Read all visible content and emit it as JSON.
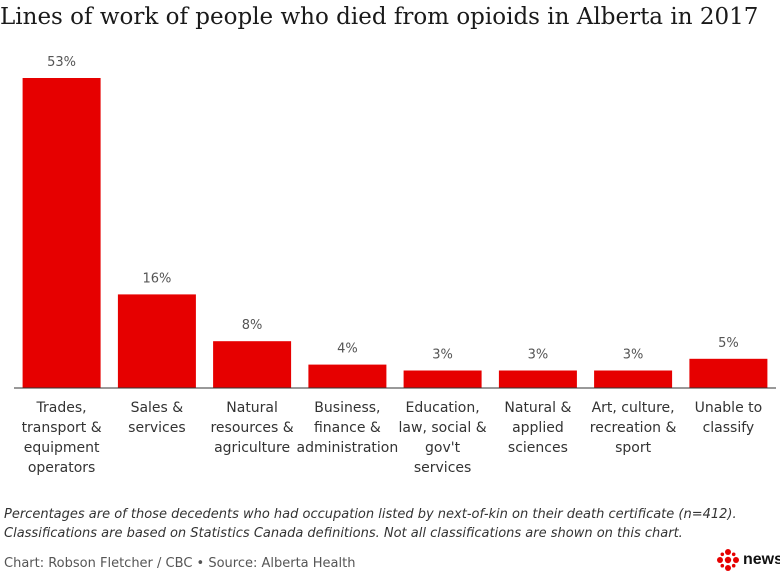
{
  "title": "Lines of work of people who died from opioids in Alberta in 2017",
  "chart_data": {
    "type": "bar",
    "title": "Lines of work of people who died from opioids in Alberta in 2017",
    "categories": [
      "Trades, transport & equipment operators",
      "Sales & services",
      "Natural resources & agriculture",
      "Business, finance & administration",
      "Education, law, social & gov't services",
      "Natural & applied sciences",
      "Art, culture, recreation & sport",
      "Unable to classify"
    ],
    "category_lines": [
      [
        "Trades,",
        "transport &",
        "equipment",
        "operators"
      ],
      [
        "Sales &",
        "services"
      ],
      [
        "Natural",
        "resources &",
        "agriculture"
      ],
      [
        "Business,",
        "finance &",
        "administration"
      ],
      [
        "Education,",
        "law, social &",
        "gov't",
        "services"
      ],
      [
        "Natural &",
        "applied",
        "sciences"
      ],
      [
        "Art, culture,",
        "recreation &",
        "sport"
      ],
      [
        "Unable to",
        "classify"
      ]
    ],
    "values": [
      53,
      16,
      8,
      4,
      3,
      3,
      3,
      5
    ],
    "labels": [
      "53%",
      "16%",
      "8%",
      "4%",
      "3%",
      "3%",
      "3%",
      "5%"
    ],
    "unit": "%",
    "ylim": [
      0,
      53
    ],
    "grid": false,
    "bar_color": "#e60000"
  },
  "footnote": {
    "line1": "Percentages are of those decedents who had occupation listed by next-of-kin on their death certificate (n=412).",
    "line2": "Classifications are based on Statistics Canada definitions. Not all classifications are shown on this chart."
  },
  "credit": "Chart: Robson Fletcher / CBC • Source: Alberta Health",
  "logo": {
    "text": "news",
    "color": "#e60000",
    "icon": "cbc-gem-icon"
  }
}
